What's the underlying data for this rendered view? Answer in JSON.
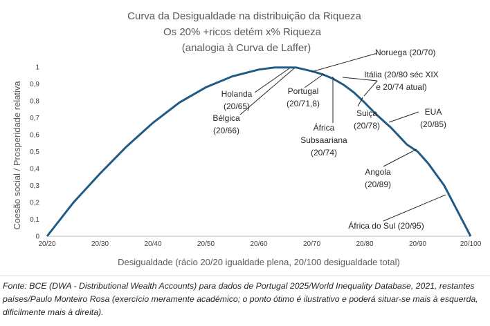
{
  "chart_data": {
    "type": "line",
    "title": [
      "Curva da Desigualdade na distribuição da Riqueza",
      "Os 20% +ricos detém x% Riqueza",
      "(analogia à Curva de Laffer)"
    ],
    "xlabel": "Desigualdade (rácio 20/20 igualdade plena, 20/100 desigualdade total)",
    "ylabel": "Coesão social / Prosperidade relativa",
    "x_categories": [
      "20/20",
      "20/30",
      "20/40",
      "20/50",
      "20/60",
      "20/70",
      "20/80",
      "20/90",
      "20/100"
    ],
    "x_range": [
      20,
      100
    ],
    "ylim": [
      0,
      1
    ],
    "y_ticks": [
      "0",
      "0,1",
      "0,2",
      "0,3",
      "0,4",
      "0,5",
      "0,6",
      "0,7",
      "0,8",
      "0,9",
      "1"
    ],
    "grid": false,
    "series": [
      {
        "color": "#1f5b85",
        "x": [
          20,
          25,
          30,
          35,
          40,
          45,
          50,
          55,
          60,
          63,
          67,
          70,
          72,
          74,
          76,
          78,
          80,
          82,
          85,
          88,
          90,
          92,
          95,
          98,
          100
        ],
        "y": [
          0,
          0.2,
          0.37,
          0.53,
          0.67,
          0.79,
          0.88,
          0.945,
          0.985,
          0.997,
          0.997,
          0.975,
          0.957,
          0.931,
          0.895,
          0.848,
          0.789,
          0.725,
          0.64,
          0.541,
          0.5,
          0.43,
          0.3,
          0.12,
          0
        ]
      }
    ],
    "annotations": [
      {
        "lines": [
          "Noruega (20/70)"
        ],
        "x": 67,
        "y": 0.997
      },
      {
        "lines": [
          "Holanda",
          "(20/65)"
        ],
        "x": 65,
        "y": 0.99
      },
      {
        "lines": [
          "Bélgica",
          "(20/66)"
        ],
        "x": 66,
        "y": 0.995
      },
      {
        "lines": [
          "Portugal",
          "(20/71,8)"
        ],
        "x": 71.8,
        "y": 0.96
      },
      {
        "lines": [
          "Itália (20/80 séc XIX",
          "e 20/74 atual)"
        ],
        "x": 80,
        "y": 0.789
      },
      {
        "lines": [
          "África",
          "Subsaariana",
          "(20/74)"
        ],
        "x": 74,
        "y": 0.931
      },
      {
        "lines": [
          "Suiça",
          "(20/78)"
        ],
        "x": 78,
        "y": 0.848
      },
      {
        "lines": [
          "EUA",
          "(20/85)"
        ],
        "x": 85,
        "y": 0.64
      },
      {
        "lines": [
          "Angola",
          "(20/89)"
        ],
        "x": 89,
        "y": 0.52
      },
      {
        "lines": [
          "África do Sul (20/95)"
        ],
        "x": 95,
        "y": 0.3
      }
    ]
  },
  "source_note": "Fonte: BCE (DWA - Distributional Wealth Accounts) para dados de Portugal 2025/World Inequality Database, 2021, restantes países/Paulo Monteiro Rosa (exercício meramente académico; o ponto ótimo é ilustrativo e poderá situar-se mais à esquerda, dificilmente mais à direita)."
}
